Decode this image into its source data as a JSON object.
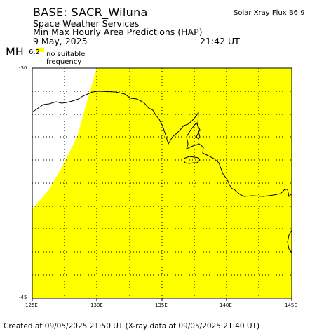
{
  "header": {
    "base": "BASE: SACR_Wiluna",
    "org": "Space Weather Services",
    "product": "Min Max Hourly Area Predictions (HAP)",
    "date": "9 May, 2025",
    "time": "21:42 UT",
    "flux": "Solar Xray Flux B6.9"
  },
  "legend": {
    "mh_label": "MH",
    "mh_value": "6.2",
    "swatch_color": "#ffff00",
    "no_freq_line1": "no suitable",
    "no_freq_line2": "frequency"
  },
  "axes": {
    "lat_labels": [
      "-30",
      "-45"
    ],
    "lon_labels": [
      "125E",
      "130E",
      "135E",
      "140E",
      "145E"
    ]
  },
  "colors": {
    "coverage": "#ffff00",
    "no_coverage": "#ffffff",
    "grid": "#000000",
    "coast": "#000000"
  },
  "footer": {
    "text": "Created at 09/05/2025 21:50 UT (X-ray data at 09/05/2025 21:40 UT)"
  }
}
